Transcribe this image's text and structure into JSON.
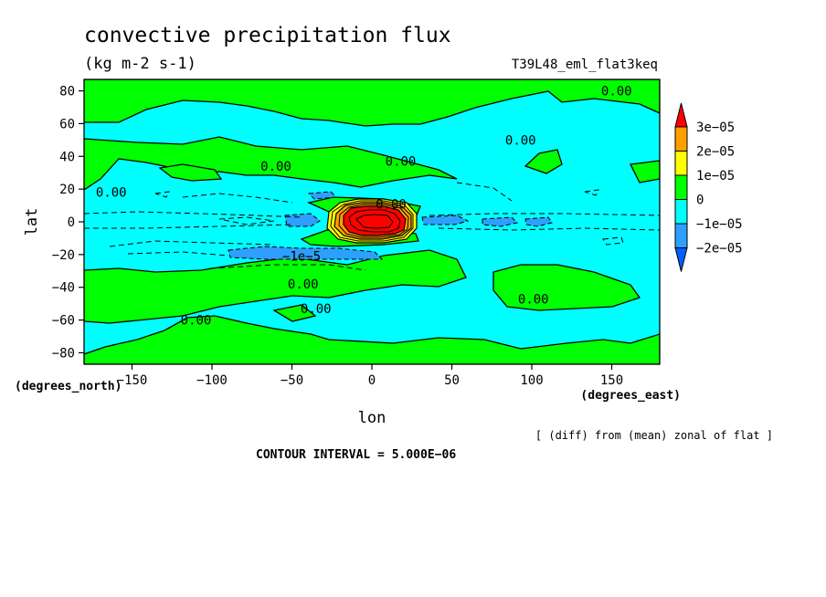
{
  "chart_data": {
    "type": "contour",
    "title": "convective precipitation flux",
    "units": "(kg m-2 s-1)",
    "dataset": "T39L48_eml_flat3keq",
    "xlabel": "lon",
    "ylabel": "lat",
    "x_units": "(degrees_east)",
    "y_units": "(degrees_north)",
    "xlim": [
      -180,
      180
    ],
    "ylim": [
      -87,
      87
    ],
    "x_ticks": [
      -150,
      -100,
      -50,
      0,
      50,
      100,
      150
    ],
    "y_ticks": [
      -80,
      -60,
      -40,
      -20,
      0,
      20,
      40,
      60,
      80
    ],
    "x_tick_labels": [
      "−150",
      "−100",
      "−50",
      "0",
      "50",
      "100",
      "150"
    ],
    "y_tick_labels": [
      "−80",
      "−60",
      "−40",
      "−20",
      "0",
      "20",
      "40",
      "60",
      "80"
    ],
    "colorbar": {
      "labels": [
        "3e−05",
        "2e−05",
        "1e−05",
        "0",
        "−1e−05",
        "−2e−05"
      ],
      "levels": [
        3e-05,
        2e-05,
        1e-05,
        0,
        -1e-05,
        -2e-05
      ],
      "colors": [
        "#ff0000",
        "#ff9f00",
        "#ffff00",
        "#00ff00",
        "#00ffff",
        "#2e9fff",
        "#0060ff"
      ]
    },
    "contour_labels": [
      {
        "text": "0.00",
        "lon": 153,
        "lat": 80
      },
      {
        "text": "0.00",
        "lon": 93,
        "lat": 50
      },
      {
        "text": "0.00",
        "lon": -60,
        "lat": 34
      },
      {
        "text": "0.00",
        "lon": 18,
        "lat": 37
      },
      {
        "text": "0.00",
        "lon": -163,
        "lat": 18
      },
      {
        "text": "0.00",
        "lon": 12,
        "lat": 11
      },
      {
        "text": "−1e−5",
        "lon": -44,
        "lat": -21
      },
      {
        "text": "0.00",
        "lon": -43,
        "lat": -38
      },
      {
        "text": "0.00",
        "lon": 101,
        "lat": -47
      },
      {
        "text": "0.00",
        "lon": -110,
        "lat": -60
      },
      {
        "text": "0.00",
        "lon": -35,
        "lat": -53
      }
    ],
    "contour_interval": "CONTOUR INTERVAL = 5.000E−06",
    "footnote": "[ (diff) from (mean) zonal of flat ]"
  },
  "colors": {
    "background": "#ffffff",
    "cyan": "#00ffff",
    "green": "#00ff00"
  }
}
